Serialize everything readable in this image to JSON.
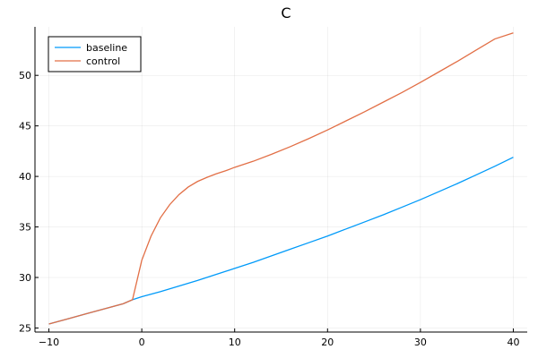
{
  "chart_data": {
    "type": "line",
    "title": "C",
    "xlabel": "",
    "ylabel": "",
    "xlim": [
      -11.5,
      41.5
    ],
    "ylim": [
      24.6,
      54.8
    ],
    "xticks": [
      -10,
      0,
      10,
      20,
      30,
      40
    ],
    "yticks": [
      25,
      30,
      35,
      40,
      45,
      50
    ],
    "grid": true,
    "legend_position": "top-left",
    "series": [
      {
        "name": "baseline",
        "color": "#009AF9",
        "x": [
          -10,
          -8,
          -6,
          -4,
          -2,
          -1,
          0,
          2,
          4,
          6,
          8,
          10,
          12,
          14,
          16,
          18,
          20,
          22,
          24,
          26,
          28,
          30,
          32,
          34,
          36,
          38,
          40
        ],
        "y": [
          25.4,
          25.9,
          26.4,
          26.9,
          27.4,
          27.8,
          28.1,
          28.6,
          29.15,
          29.7,
          30.3,
          30.9,
          31.5,
          32.15,
          32.8,
          33.45,
          34.1,
          34.8,
          35.5,
          36.2,
          36.95,
          37.7,
          38.5,
          39.3,
          40.15,
          41.0,
          41.9
        ]
      },
      {
        "name": "control",
        "color": "#E26F46",
        "x": [
          -10,
          -8,
          -6,
          -4,
          -2,
          -1,
          0,
          1,
          2,
          3,
          4,
          5,
          6,
          7,
          8,
          9,
          10,
          12,
          14,
          16,
          18,
          20,
          22,
          24,
          26,
          28,
          30,
          32,
          34,
          36,
          38,
          40
        ],
        "y": [
          25.4,
          25.9,
          26.4,
          26.9,
          27.4,
          27.8,
          31.7,
          34.1,
          35.9,
          37.2,
          38.2,
          38.95,
          39.5,
          39.9,
          40.25,
          40.55,
          40.9,
          41.5,
          42.2,
          42.95,
          43.75,
          44.6,
          45.5,
          46.4,
          47.35,
          48.3,
          49.3,
          50.35,
          51.4,
          52.5,
          53.6,
          54.2
        ]
      }
    ]
  }
}
